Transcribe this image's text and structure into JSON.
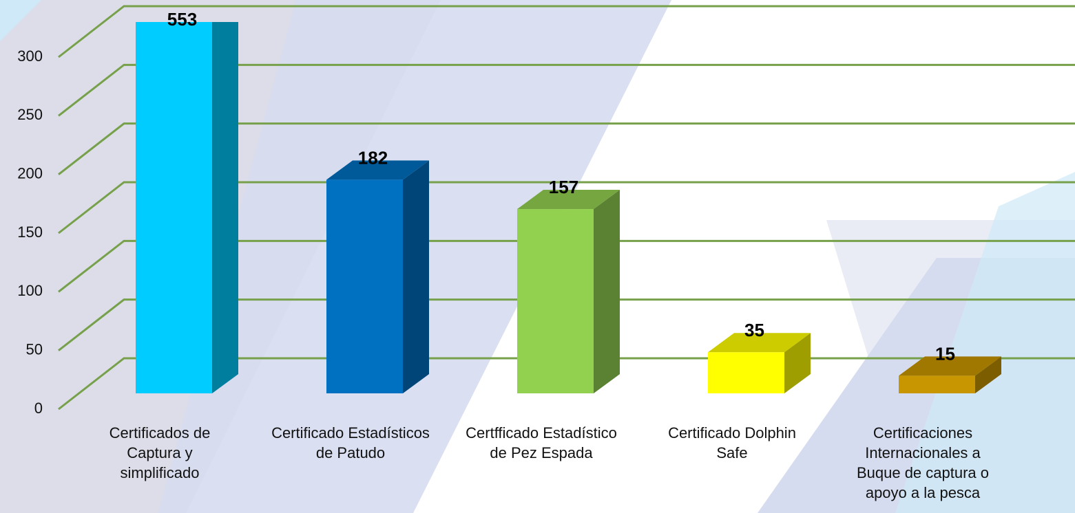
{
  "chart_data": {
    "type": "bar3d",
    "categories": [
      "Certificados de Captura y simplificado",
      "Certificado Estadísticos de Patudo",
      "Certfficado Estadístico de Pez Espada",
      "Certificado Dolphin Safe",
      "Certificaciones Internacionales a Buque de captura o apoyo a la pesca"
    ],
    "values": [
      553,
      182,
      157,
      35,
      15
    ],
    "colors": [
      "#00ccff",
      "#0070c0",
      "#92d050",
      "#ffff00",
      "#c89600"
    ],
    "ylim": [
      0,
      300
    ],
    "yticks": [
      0,
      50,
      100,
      150,
      200,
      250,
      300
    ],
    "grid": true
  }
}
